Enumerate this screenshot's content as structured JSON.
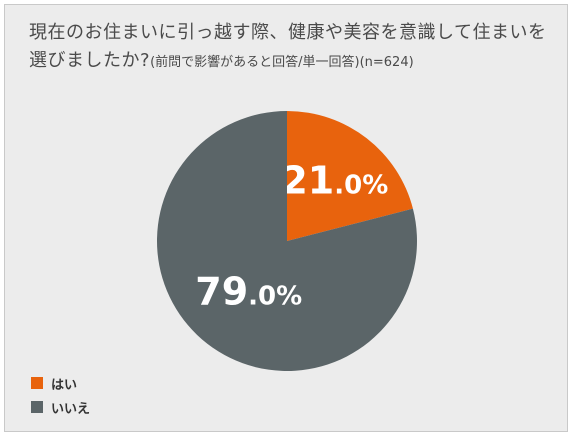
{
  "title": {
    "main": "現在のお住まいに引っ越す際、健康や美容を意識して住まいを選びましたか?",
    "note": "(前問で影響があると回答/単一回答)(n=624)"
  },
  "chart_data": {
    "type": "pie",
    "unit": "%",
    "start_angle_deg": 0,
    "direction": "clockwise",
    "slices": [
      {
        "label": "はい",
        "value": 21.0,
        "value_label": "21.0%",
        "color": "#e8630d"
      },
      {
        "label": "いいえ",
        "value": 79.0,
        "value_label": "79.0%",
        "color": "#5b6568"
      }
    ],
    "legend_position": "bottom-left"
  },
  "legend": {
    "items": [
      {
        "label": "はい",
        "color": "#e8630d"
      },
      {
        "label": "いいえ",
        "color": "#5b6568"
      }
    ]
  }
}
